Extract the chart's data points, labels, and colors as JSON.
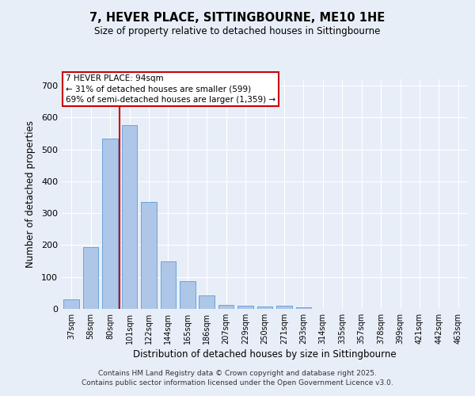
{
  "title": "7, HEVER PLACE, SITTINGBOURNE, ME10 1HE",
  "subtitle": "Size of property relative to detached houses in Sittingbourne",
  "xlabel": "Distribution of detached houses by size in Sittingbourne",
  "ylabel": "Number of detached properties",
  "categories": [
    "37sqm",
    "58sqm",
    "80sqm",
    "101sqm",
    "122sqm",
    "144sqm",
    "165sqm",
    "186sqm",
    "207sqm",
    "229sqm",
    "250sqm",
    "271sqm",
    "293sqm",
    "314sqm",
    "335sqm",
    "357sqm",
    "378sqm",
    "399sqm",
    "421sqm",
    "442sqm",
    "463sqm"
  ],
  "values": [
    30,
    193,
    535,
    575,
    335,
    148,
    88,
    42,
    12,
    10,
    8,
    10,
    5,
    0,
    0,
    0,
    0,
    0,
    0,
    0,
    0
  ],
  "bar_color": "#aec6e8",
  "bar_edge_color": "#5b9bd5",
  "marker_line_color": "#cc0000",
  "annotation_line1": "7 HEVER PLACE: 94sqm",
  "annotation_line2": "← 31% of detached houses are smaller (599)",
  "annotation_line3": "69% of semi-detached houses are larger (1,359) →",
  "ylim": [
    0,
    720
  ],
  "yticks": [
    0,
    100,
    200,
    300,
    400,
    500,
    600,
    700
  ],
  "background_color": "#e8eef7",
  "grid_color": "#ffffff",
  "footer1": "Contains HM Land Registry data © Crown copyright and database right 2025.",
  "footer2": "Contains public sector information licensed under the Open Government Licence v3.0."
}
